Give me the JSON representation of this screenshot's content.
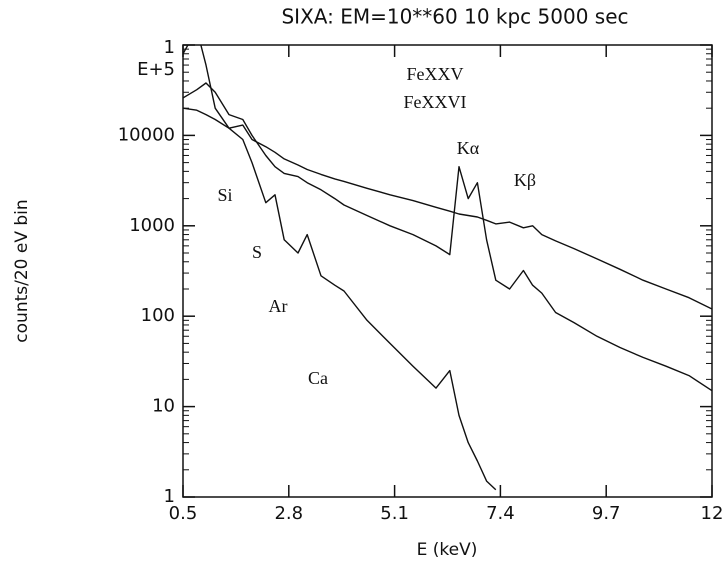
{
  "chart_data": {
    "type": "line",
    "title": "SIXA: EM=10**60   10 kpc 5000 sec",
    "xlabel": "E (keV)",
    "ylabel": "counts/20 eV bin",
    "annotations": [
      "FeXXV",
      "FeXXVI",
      "Kα",
      "Kβ",
      "Si",
      "S",
      "Ar",
      "Ca"
    ],
    "xlim": [
      0.5,
      12
    ],
    "xticks": [
      0.5,
      2.8,
      5.1,
      7.4,
      9.7,
      12
    ],
    "ylim": [
      1,
      100000
    ],
    "yscale": "log",
    "yticks": [
      1,
      10,
      100,
      1000,
      10000,
      {
        "value": 100000,
        "label": "1 E+5"
      }
    ],
    "x": [
      0.5,
      0.8,
      1.0,
      1.2,
      1.5,
      1.8,
      2.0,
      2.3,
      2.5,
      2.7,
      3.0,
      3.2,
      3.5,
      3.8,
      4.0,
      4.5,
      5.0,
      5.5,
      6.0,
      6.3,
      6.5,
      6.7,
      6.9,
      7.1,
      7.3,
      7.6,
      7.9,
      8.1,
      8.3,
      8.6,
      9.0,
      9.5,
      10,
      10.5,
      11,
      11.5,
      12
    ],
    "series": [
      {
        "color": "#111111",
        "values": [
          20000,
          19000,
          17000,
          15000,
          12000,
          13000,
          9000,
          7500,
          6500,
          5500,
          4700,
          4200,
          3700,
          3300,
          3100,
          2600,
          2200,
          1900,
          1600,
          1450,
          1350,
          1300,
          1250,
          1150,
          1050,
          1100,
          950,
          1000,
          800,
          680,
          560,
          430,
          330,
          250,
          200,
          160,
          120
        ]
      },
      {
        "color": "#111111",
        "values": [
          26000,
          32000,
          38000,
          30000,
          17000,
          15000,
          10000,
          6000,
          4500,
          3800,
          3500,
          3000,
          2500,
          2000,
          1700,
          1300,
          1000,
          800,
          600,
          480,
          4500,
          2000,
          3000,
          700,
          250,
          200,
          320,
          220,
          180,
          110,
          85,
          60,
          45,
          35,
          28,
          22,
          15
        ]
      },
      {
        "color": "#111111",
        "values": [
          80000,
          150000,
          60000,
          20000,
          12000,
          9000,
          5000,
          1800,
          2200,
          700,
          500,
          800,
          280,
          220,
          190,
          90,
          50,
          28,
          16,
          25,
          8,
          4,
          2.5,
          1.5,
          1.2,
          null,
          null,
          null,
          null,
          null,
          null,
          null,
          null,
          null,
          null,
          null,
          null
        ]
      }
    ]
  }
}
